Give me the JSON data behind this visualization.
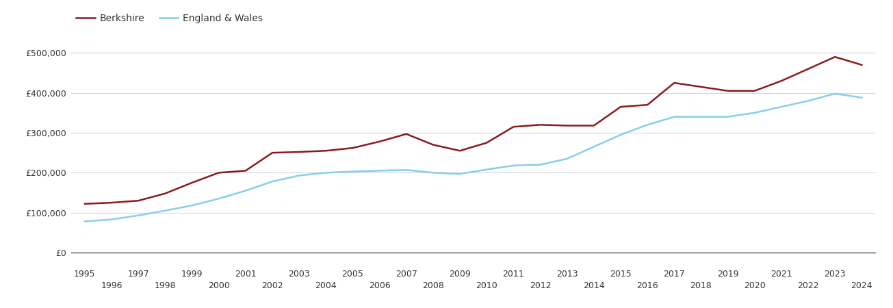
{
  "berkshire": {
    "years": [
      1995,
      1996,
      1997,
      1998,
      1999,
      2000,
      2001,
      2002,
      2003,
      2004,
      2005,
      2006,
      2007,
      2008,
      2009,
      2010,
      2011,
      2012,
      2013,
      2014,
      2015,
      2016,
      2017,
      2018,
      2019,
      2020,
      2021,
      2022,
      2023,
      2024
    ],
    "values": [
      122000,
      125000,
      130000,
      148000,
      175000,
      200000,
      205000,
      250000,
      252000,
      255000,
      262000,
      278000,
      297000,
      270000,
      255000,
      275000,
      315000,
      320000,
      318000,
      318000,
      365000,
      370000,
      425000,
      415000,
      405000,
      405000,
      430000,
      460000,
      490000,
      470000
    ]
  },
  "england_wales": {
    "years": [
      1995,
      1996,
      1997,
      1998,
      1999,
      2000,
      2001,
      2002,
      2003,
      2004,
      2005,
      2006,
      2007,
      2008,
      2009,
      2010,
      2011,
      2012,
      2013,
      2014,
      2015,
      2016,
      2017,
      2018,
      2019,
      2020,
      2021,
      2022,
      2023,
      2024
    ],
    "values": [
      78000,
      83000,
      93000,
      105000,
      118000,
      135000,
      155000,
      178000,
      193000,
      200000,
      203000,
      205000,
      207000,
      200000,
      197000,
      208000,
      218000,
      220000,
      235000,
      265000,
      295000,
      320000,
      340000,
      340000,
      340000,
      350000,
      365000,
      380000,
      398000,
      388000
    ]
  },
  "berkshire_color": "#8B1A1A",
  "england_wales_color": "#87CEEB",
  "background_color": "#ffffff",
  "grid_color": "#d0d8e0",
  "ylim": [
    0,
    540000
  ],
  "yticks": [
    0,
    100000,
    200000,
    300000,
    400000,
    500000
  ],
  "ytick_labels": [
    "£0",
    "£100,000",
    "£200,000",
    "£300,000",
    "£400,000",
    "£500,000"
  ],
  "xticks_odd": [
    1995,
    1997,
    1999,
    2001,
    2003,
    2005,
    2007,
    2009,
    2011,
    2013,
    2015,
    2017,
    2019,
    2021,
    2023
  ],
  "xticks_even": [
    1996,
    1998,
    2000,
    2002,
    2004,
    2006,
    2008,
    2010,
    2012,
    2014,
    2016,
    2018,
    2020,
    2022,
    2024
  ],
  "line_width": 1.8,
  "legend_berkshire": "Berkshire",
  "legend_england_wales": "England & Wales",
  "tick_fontsize": 9,
  "legend_fontsize": 10
}
